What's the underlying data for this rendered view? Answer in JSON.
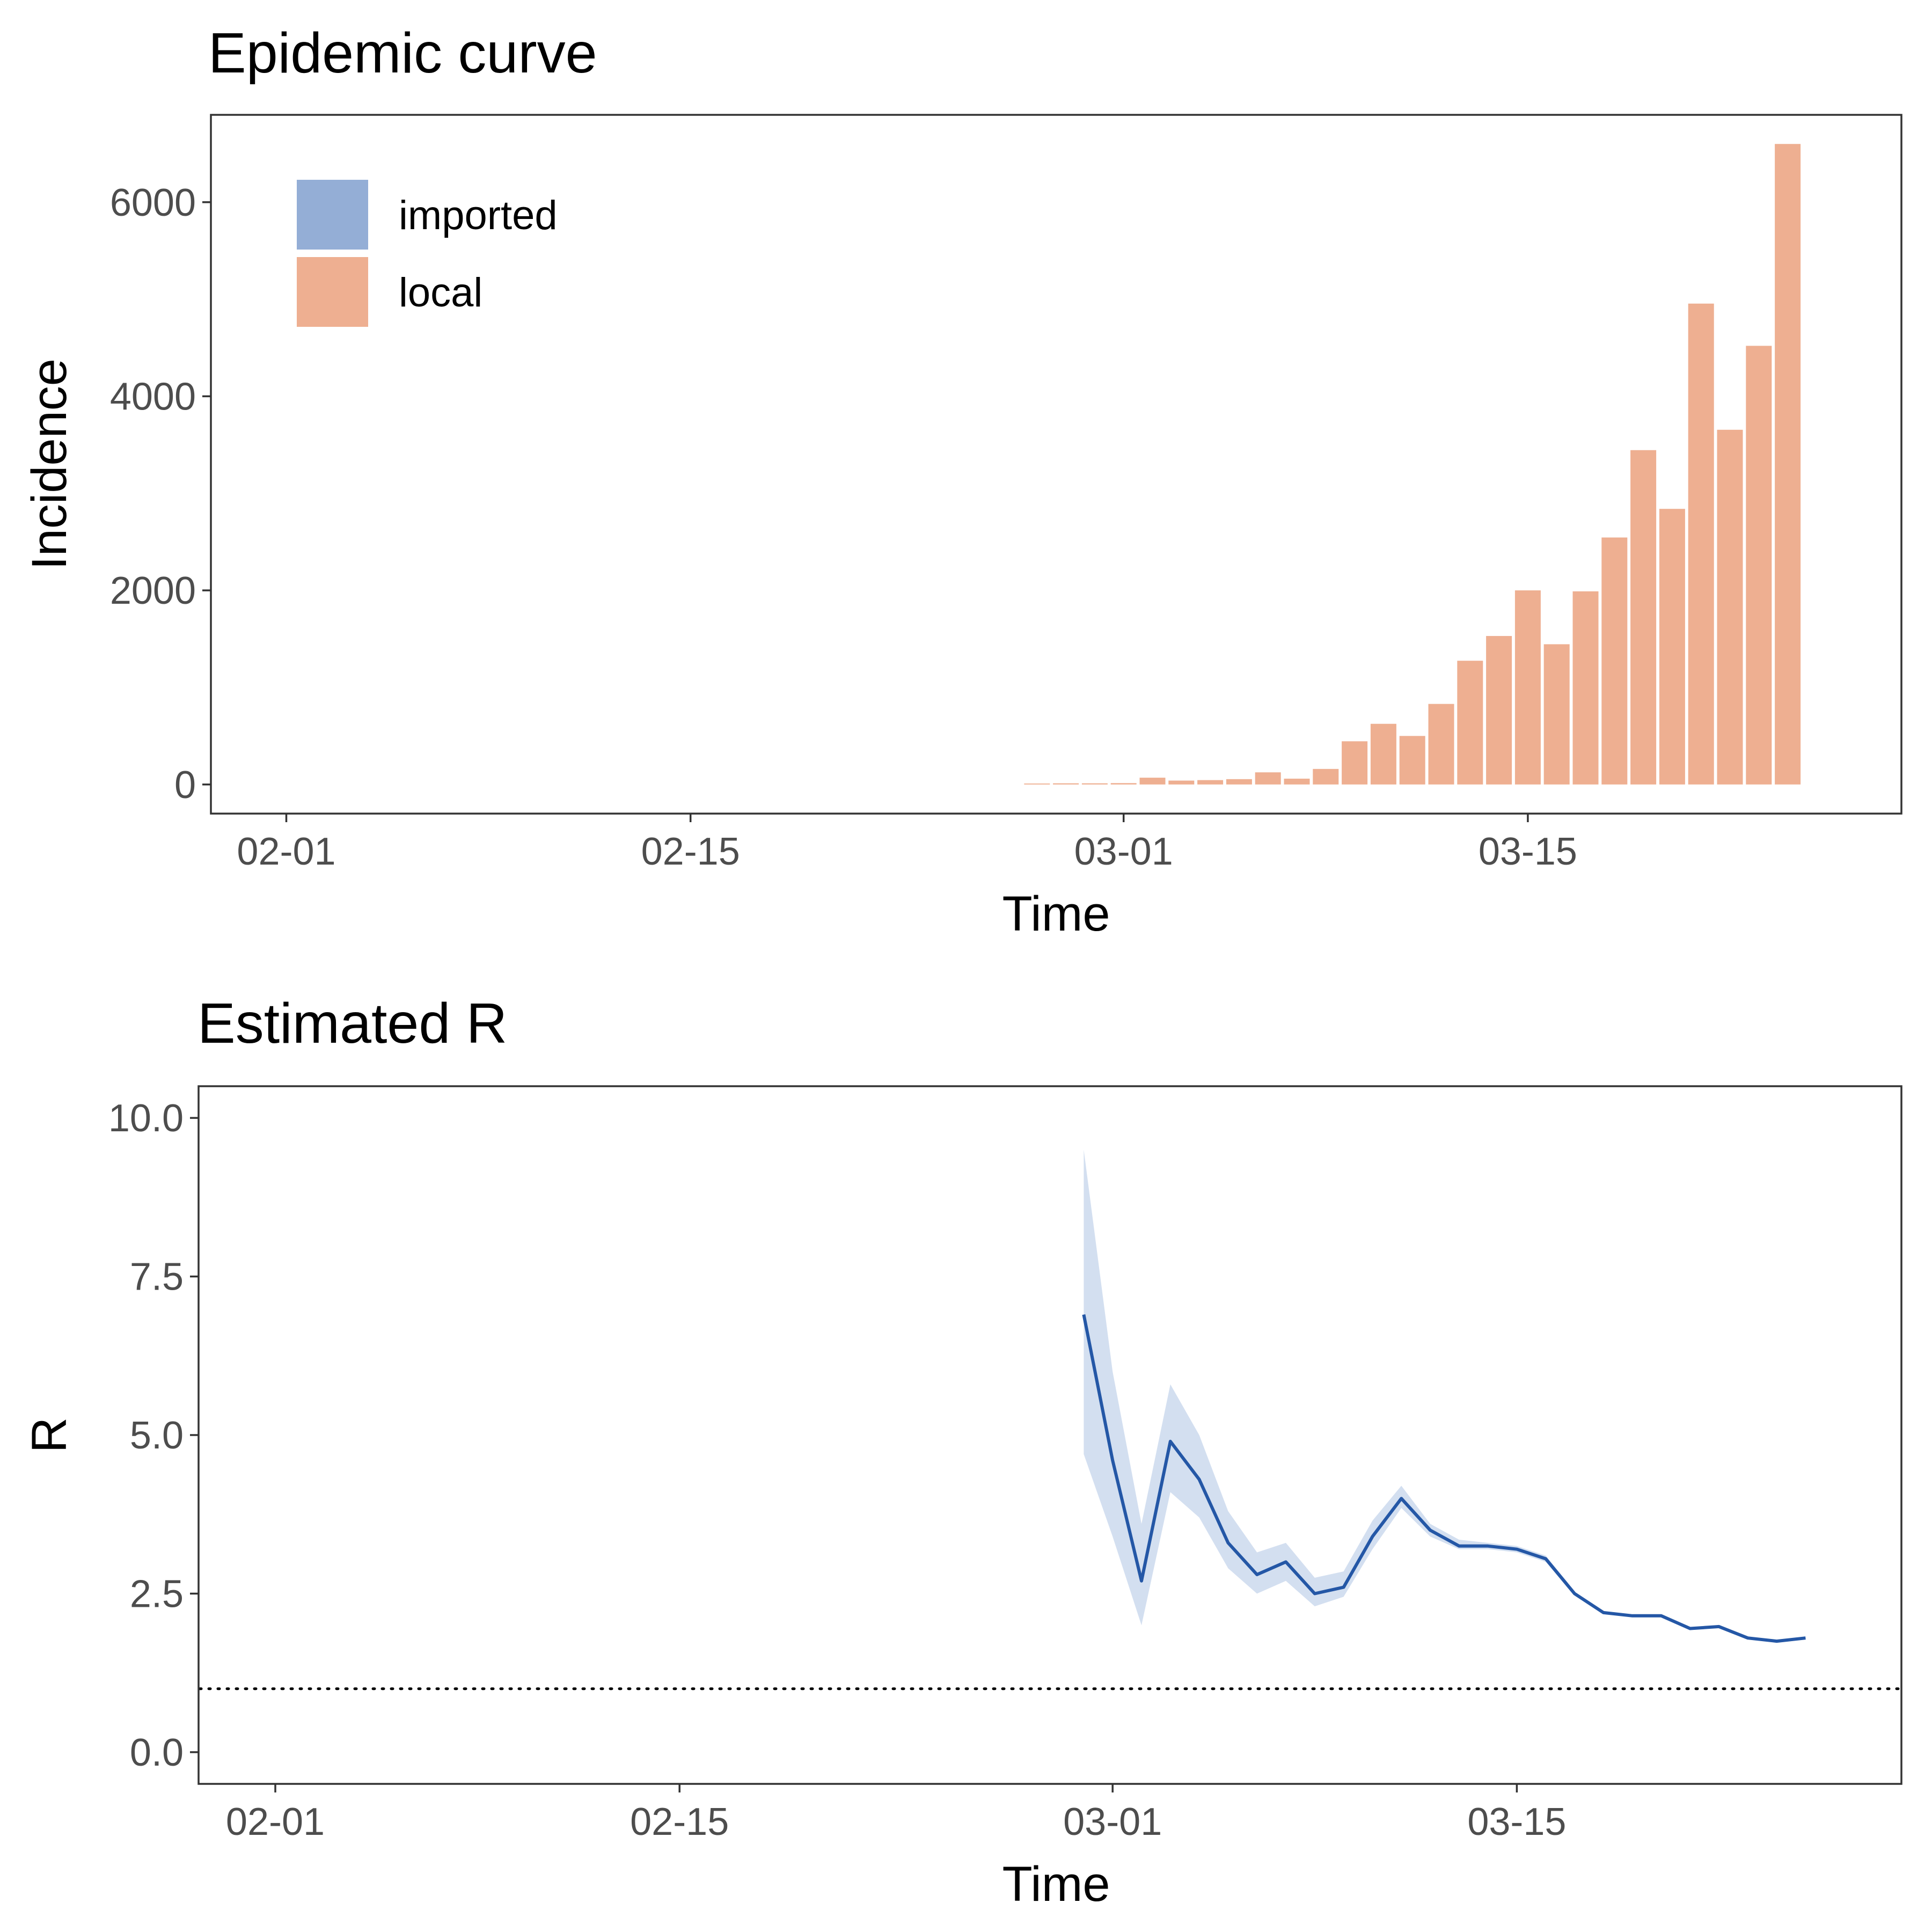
{
  "chart_data": [
    {
      "type": "bar",
      "title": "Epidemic curve",
      "xlabel": "Time",
      "ylabel": "Incidence",
      "x_ticks": [
        "02-01",
        "02-15",
        "03-01",
        "03-15"
      ],
      "y_ticks": [
        "0",
        "2000",
        "4000",
        "6000"
      ],
      "ylim": [
        -300,
        6900
      ],
      "grid": false,
      "legend_position": "top-left",
      "colors": {
        "imported": "#94aed6",
        "local": "#eeaf91"
      },
      "series": [
        {
          "name": "imported",
          "values": []
        },
        {
          "name": "local",
          "dates": [
            "02-27",
            "02-28",
            "02-29",
            "03-01",
            "03-02",
            "03-03",
            "03-04",
            "03-05",
            "03-06",
            "03-07",
            "03-08",
            "03-09",
            "03-10",
            "03-11",
            "03-12",
            "03-13",
            "03-14",
            "03-15",
            "03-16",
            "03-17",
            "03-18",
            "03-19",
            "03-20",
            "03-21",
            "03-22",
            "03-23",
            "03-24",
            "03-25",
            "03-26",
            "03-27"
          ],
          "values": [
            10,
            12,
            12,
            14,
            70,
            40,
            45,
            55,
            125,
            60,
            160,
            445,
            625,
            500,
            830,
            1275,
            1530,
            2000,
            1445,
            1990,
            2545,
            3445,
            2840,
            4955,
            3655,
            4520,
            6600,
            0,
            0,
            0
          ]
        }
      ]
    },
    {
      "type": "line",
      "title": "Estimated R",
      "xlabel": "Time",
      "ylabel": "R",
      "x_ticks": [
        "02-01",
        "02-15",
        "03-01",
        "03-15"
      ],
      "y_ticks": [
        "0.0",
        "2.5",
        "5.0",
        "7.5",
        "10.0"
      ],
      "ylim": [
        -0.5,
        10.5
      ],
      "grid": false,
      "reference_line": {
        "y": 1.0,
        "style": "dotted"
      },
      "colors": {
        "line": "#2457a6",
        "band": "#d3dff0"
      },
      "series": [
        {
          "name": "R",
          "x": [
            "02-29",
            "03-01",
            "03-02",
            "03-03",
            "03-04",
            "03-05",
            "03-06",
            "03-07",
            "03-08",
            "03-09",
            "03-10",
            "03-11",
            "03-12",
            "03-13",
            "03-14",
            "03-15",
            "03-16",
            "03-17",
            "03-18",
            "03-19",
            "03-20",
            "03-21",
            "03-22",
            "03-23",
            "03-24",
            "03-25",
            "03-26",
            "03-27"
          ],
          "values": [
            6.9,
            4.6,
            2.7,
            4.9,
            4.3,
            3.3,
            2.8,
            3.0,
            2.5,
            2.6,
            3.4,
            4.0,
            3.5,
            3.25,
            3.25,
            3.2,
            3.05,
            2.5,
            2.2,
            2.15,
            2.15,
            1.95,
            1.98,
            1.8,
            1.75,
            1.8,
            null,
            null
          ],
          "lower": [
            4.7,
            3.4,
            2.0,
            4.1,
            3.7,
            2.9,
            2.5,
            2.7,
            2.3,
            2.45,
            3.2,
            3.85,
            3.4,
            3.2,
            3.2,
            3.15,
            3.0,
            2.47,
            2.18,
            2.13,
            2.13,
            1.93,
            1.96,
            1.78,
            1.74,
            1.79,
            null,
            null
          ],
          "upper": [
            9.5,
            6.0,
            3.6,
            5.8,
            5.0,
            3.8,
            3.15,
            3.3,
            2.75,
            2.85,
            3.65,
            4.2,
            3.6,
            3.35,
            3.3,
            3.25,
            3.1,
            2.53,
            2.22,
            2.17,
            2.17,
            1.97,
            2.0,
            1.82,
            1.77,
            1.81,
            null,
            null
          ]
        }
      ]
    }
  ]
}
